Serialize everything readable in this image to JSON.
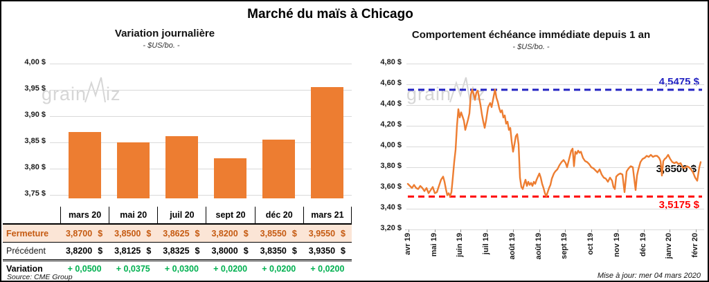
{
  "page": {
    "title": "Marché du maïs à Chicago"
  },
  "colors": {
    "bar_orange": "#ED7D31",
    "line_orange": "#ED7D31",
    "close_text": "#C55A11",
    "close_bg": "#FBE5D6",
    "variation_green": "#00B050",
    "high_blue": "#2222C2",
    "low_red": "#FF0000",
    "grid": "#D9D9D9",
    "watermark": "#D6D6D6"
  },
  "watermark": {
    "part1": "grain",
    "part2": "iz"
  },
  "footer": {
    "source": "Source: CME Group",
    "updated": "Mise à jour: mer 04 mars 2020"
  },
  "table": {
    "header": [
      "mars 20",
      "mai 20",
      "juil 20",
      "sept 20",
      "déc 20",
      "mars 21"
    ],
    "rows": [
      {
        "label": "Fermeture",
        "style": "r-close",
        "values": [
          "3,8700 $",
          "3,8500 $",
          "3,8625 $",
          "3,8200 $",
          "3,8550 $",
          "3,9550 $"
        ]
      },
      {
        "label": "Précédent",
        "style": "r-prev",
        "values": [
          "3,8200 $",
          "3,8125 $",
          "3,8325 $",
          "3,8000 $",
          "3,8350 $",
          "3,9350 $"
        ]
      },
      {
        "label": "Variation",
        "style": "r-var",
        "values": [
          "+ 0,0500",
          "+ 0,0375",
          "+ 0,0300",
          "+ 0,0200",
          "+ 0,0200",
          "+ 0,0200"
        ]
      }
    ]
  },
  "chart_data": [
    {
      "type": "bar",
      "title": "Variation journalière",
      "subtitle": "- $US/bo. -",
      "categories": [
        "mars 20",
        "mai 20",
        "juil 20",
        "sept 20",
        "déc 20",
        "mars 21"
      ],
      "values": [
        3.87,
        3.85,
        3.8625,
        3.82,
        3.855,
        3.955
      ],
      "ylabel": "$US/bo.",
      "ylim": [
        3.74,
        4.005
      ],
      "yticks": [
        {
          "value": 4.0,
          "label": "4,00 $"
        },
        {
          "value": 3.95,
          "label": "3,95 $"
        },
        {
          "value": 3.9,
          "label": "3,90 $"
        },
        {
          "value": 3.85,
          "label": "3,85 $"
        },
        {
          "value": 3.8,
          "label": "3,80 $"
        },
        {
          "value": 3.75,
          "label": "3,75 $"
        }
      ],
      "grid": true,
      "legend": "none"
    },
    {
      "type": "line",
      "title": "Comportement échéance immédiate depuis 1 an",
      "subtitle": "- $US/bo. -",
      "ylabel": "$US/bo.",
      "ylim": [
        3.2,
        4.8
      ],
      "yticks": [
        {
          "value": 4.8,
          "label": "4,80 $"
        },
        {
          "value": 4.6,
          "label": "4,60 $"
        },
        {
          "value": 4.4,
          "label": "4,40 $"
        },
        {
          "value": 4.2,
          "label": "4,20 $"
        },
        {
          "value": 4.0,
          "label": "4,00 $"
        },
        {
          "value": 3.8,
          "label": "3,80 $"
        },
        {
          "value": 3.6,
          "label": "3,60 $"
        },
        {
          "value": 3.4,
          "label": "3,40 $"
        },
        {
          "value": 3.2,
          "label": "3,20 $"
        }
      ],
      "x_ticks": [
        "avr 19",
        "mai 19",
        "juin 19",
        "juil 19",
        "août 19",
        "août 19",
        "sept 19",
        "oct 19",
        "nov 19",
        "déc 19",
        "janv 20",
        "févr 20"
      ],
      "grid": true,
      "legend": "none",
      "ref_lines": [
        {
          "value": 4.5475,
          "label": "4,5475 $",
          "color": "#2222C2",
          "style": "dashed",
          "meaning": "high"
        },
        {
          "value": 3.5175,
          "label": "3,5175 $",
          "color": "#FF0000",
          "style": "dashed",
          "meaning": "low"
        }
      ],
      "last_value_label": "3,8500 $",
      "last_value": 3.85,
      "series": [
        {
          "name": "échéance immédiate",
          "color": "#ED7D31",
          "points": [
            [
              587,
              3.64
            ],
            [
              590,
              3.62
            ],
            [
              593,
              3.6
            ],
            [
              596,
              3.63
            ],
            [
              599,
              3.6
            ],
            [
              602,
              3.59
            ],
            [
              605,
              3.62
            ],
            [
              608,
              3.6
            ],
            [
              611,
              3.57
            ],
            [
              614,
              3.6
            ],
            [
              617,
              3.55
            ],
            [
              620,
              3.58
            ],
            [
              623,
              3.61
            ],
            [
              626,
              3.55
            ],
            [
              629,
              3.56
            ],
            [
              632,
              3.62
            ],
            [
              635,
              3.68
            ],
            [
              638,
              3.71
            ],
            [
              640,
              3.66
            ],
            [
              642,
              3.59
            ],
            [
              644,
              3.53
            ],
            [
              646,
              3.55
            ],
            [
              648,
              3.52
            ],
            [
              650,
              3.56
            ],
            [
              652,
              3.7
            ],
            [
              654,
              3.85
            ],
            [
              656,
              3.97
            ],
            [
              658,
              4.2
            ],
            [
              660,
              4.36
            ],
            [
              662,
              4.28
            ],
            [
              664,
              4.33
            ],
            [
              666,
              4.29
            ],
            [
              668,
              4.25
            ],
            [
              670,
              4.16
            ],
            [
              672,
              4.21
            ],
            [
              674,
              4.26
            ],
            [
              676,
              4.32
            ],
            [
              678,
              4.5
            ],
            [
              680,
              4.55
            ],
            [
              682,
              4.51
            ],
            [
              684,
              4.45
            ],
            [
              686,
              4.52
            ],
            [
              688,
              4.54
            ],
            [
              690,
              4.47
            ],
            [
              692,
              4.4
            ],
            [
              694,
              4.31
            ],
            [
              696,
              4.24
            ],
            [
              698,
              4.18
            ],
            [
              700,
              4.25
            ],
            [
              703,
              4.38
            ],
            [
              706,
              4.42
            ],
            [
              708,
              4.38
            ],
            [
              710,
              4.45
            ],
            [
              713,
              4.55
            ],
            [
              715,
              4.47
            ],
            [
              717,
              4.43
            ],
            [
              719,
              4.37
            ],
            [
              721,
              4.33
            ],
            [
              723,
              4.35
            ],
            [
              725,
              4.28
            ],
            [
              727,
              4.3
            ],
            [
              729,
              4.22
            ],
            [
              731,
              4.24
            ],
            [
              733,
              4.16
            ],
            [
              735,
              4.18
            ],
            [
              737,
              4.05
            ],
            [
              739,
              3.95
            ],
            [
              741,
              4.02
            ],
            [
              743,
              4.1
            ],
            [
              745,
              4.12
            ],
            [
              747,
              4.02
            ],
            [
              749,
              3.7
            ],
            [
              751,
              3.61
            ],
            [
              753,
              3.59
            ],
            [
              755,
              3.64
            ],
            [
              757,
              3.68
            ],
            [
              759,
              3.62
            ],
            [
              761,
              3.66
            ],
            [
              763,
              3.63
            ],
            [
              765,
              3.65
            ],
            [
              767,
              3.62
            ],
            [
              769,
              3.66
            ],
            [
              771,
              3.64
            ],
            [
              773,
              3.68
            ],
            [
              775,
              3.71
            ],
            [
              777,
              3.74
            ],
            [
              779,
              3.7
            ],
            [
              781,
              3.64
            ],
            [
              783,
              3.6
            ],
            [
              785,
              3.55
            ],
            [
              787,
              3.52
            ],
            [
              789,
              3.56
            ],
            [
              791,
              3.6
            ],
            [
              793,
              3.63
            ],
            [
              795,
              3.69
            ],
            [
              798,
              3.74
            ],
            [
              800,
              3.76
            ],
            [
              803,
              3.78
            ],
            [
              806,
              3.82
            ],
            [
              809,
              3.85
            ],
            [
              812,
              3.87
            ],
            [
              815,
              3.84
            ],
            [
              817,
              3.8
            ],
            [
              820,
              3.88
            ],
            [
              823,
              3.96
            ],
            [
              825,
              3.98
            ],
            [
              827,
              3.81
            ],
            [
              829,
              3.95
            ],
            [
              831,
              3.93
            ],
            [
              833,
              3.96
            ],
            [
              835,
              3.94
            ],
            [
              837,
              3.95
            ],
            [
              840,
              3.89
            ],
            [
              843,
              3.86
            ],
            [
              846,
              3.85
            ],
            [
              849,
              3.83
            ],
            [
              852,
              3.8
            ],
            [
              855,
              3.79
            ],
            [
              858,
              3.77
            ],
            [
              861,
              3.75
            ],
            [
              864,
              3.78
            ],
            [
              867,
              3.73
            ],
            [
              870,
              3.7
            ],
            [
              873,
              3.69
            ],
            [
              876,
              3.66
            ],
            [
              879,
              3.7
            ],
            [
              882,
              3.67
            ],
            [
              884,
              3.61
            ],
            [
              886,
              3.59
            ],
            [
              888,
              3.71
            ],
            [
              891,
              3.73
            ],
            [
              894,
              3.74
            ],
            [
              897,
              3.73
            ],
            [
              900,
              3.56
            ],
            [
              903,
              3.76
            ],
            [
              906,
              3.79
            ],
            [
              909,
              3.81
            ],
            [
              912,
              3.8
            ],
            [
              914,
              3.69
            ],
            [
              916,
              3.58
            ],
            [
              918,
              3.72
            ],
            [
              920,
              3.78
            ],
            [
              923,
              3.85
            ],
            [
              926,
              3.88
            ],
            [
              929,
              3.89
            ],
            [
              932,
              3.91
            ],
            [
              935,
              3.9
            ],
            [
              938,
              3.92
            ],
            [
              941,
              3.9
            ],
            [
              944,
              3.91
            ],
            [
              947,
              3.91
            ],
            [
              950,
              3.89
            ],
            [
              952,
              3.86
            ],
            [
              954,
              3.72
            ],
            [
              956,
              3.86
            ],
            [
              958,
              3.88
            ],
            [
              960,
              3.89
            ],
            [
              963,
              3.92
            ],
            [
              966,
              3.88
            ],
            [
              969,
              3.85
            ],
            [
              972,
              3.84
            ],
            [
              975,
              3.85
            ],
            [
              978,
              3.83
            ],
            [
              981,
              3.84
            ],
            [
              984,
              3.8
            ],
            [
              987,
              3.79
            ],
            [
              990,
              3.81
            ],
            [
              993,
              3.8
            ],
            [
              996,
              3.78
            ],
            [
              999,
              3.75
            ],
            [
              1002,
              3.7
            ],
            [
              1005,
              3.67
            ],
            [
              1008,
              3.8
            ],
            [
              1010,
              3.85
            ]
          ]
        }
      ]
    }
  ]
}
